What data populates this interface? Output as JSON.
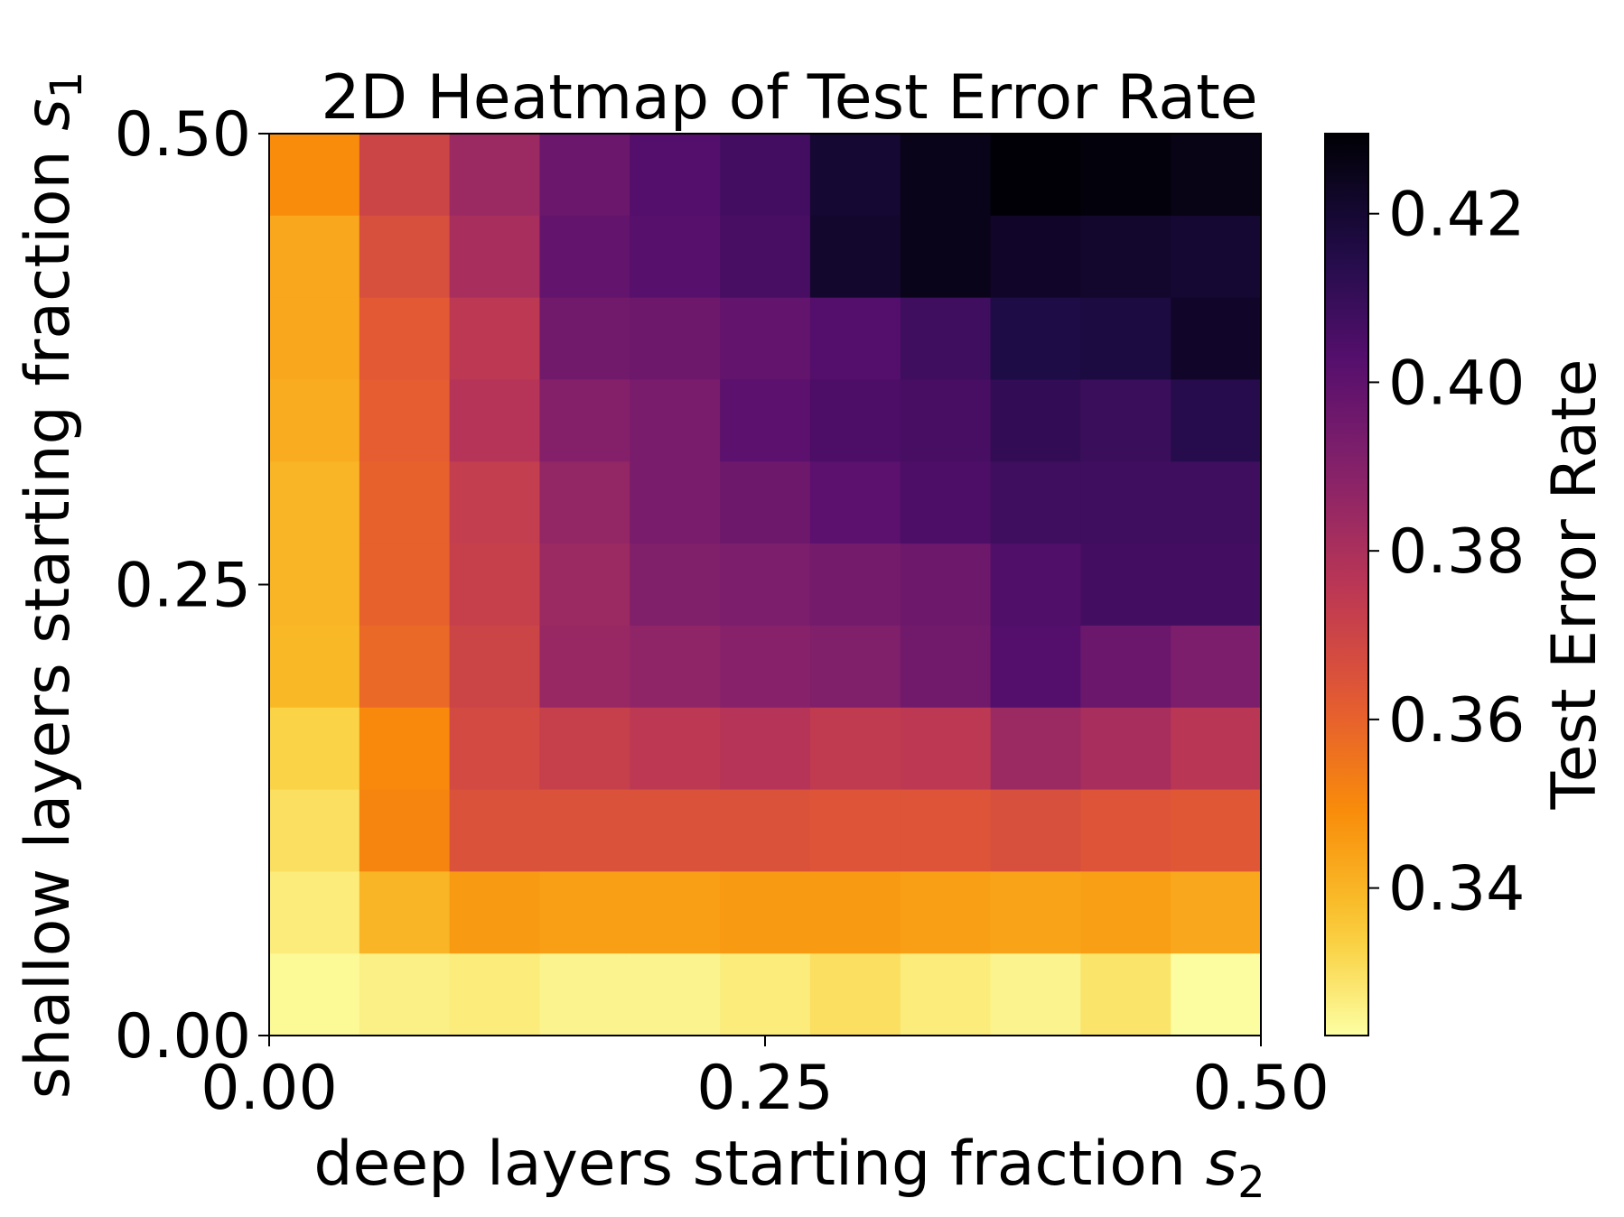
{
  "chart_data": {
    "type": "heatmap",
    "title": "2D Heatmap of Test Error Rate",
    "xlabel_text": "deep layers starting fraction ",
    "xlabel_var": "s",
    "xlabel_sub": "2",
    "ylabel_text": "shallow layers starting fraction ",
    "ylabel_var": "s",
    "ylabel_sub": "1",
    "colorbar_label": "Test Error Rate",
    "colormap": "inferno_r",
    "xlim": [
      0.0,
      0.5
    ],
    "ylim": [
      0.0,
      0.5
    ],
    "x_ticks": [
      0.0,
      0.25,
      0.5
    ],
    "x_tick_labels": [
      "0.00",
      "0.25",
      "0.50"
    ],
    "y_ticks": [
      0.0,
      0.25,
      0.5
    ],
    "y_tick_labels": [
      "0.00",
      "0.25",
      "0.50"
    ],
    "color_range": [
      0.3225,
      0.4295
    ],
    "colorbar_ticks": [
      0.34,
      0.36,
      0.38,
      0.4,
      0.42
    ],
    "colorbar_tick_labels": [
      "0.34",
      "0.36",
      "0.38",
      "0.40",
      "0.42"
    ],
    "rows_top_to_bottom": [
      [
        0.349,
        0.37,
        0.384,
        0.397,
        0.403,
        0.407,
        0.42,
        0.425,
        0.429,
        0.428,
        0.426
      ],
      [
        0.343,
        0.366,
        0.381,
        0.399,
        0.402,
        0.406,
        0.421,
        0.425,
        0.422,
        0.421,
        0.42
      ],
      [
        0.343,
        0.362,
        0.375,
        0.395,
        0.396,
        0.399,
        0.403,
        0.408,
        0.416,
        0.417,
        0.422
      ],
      [
        0.342,
        0.361,
        0.377,
        0.39,
        0.393,
        0.401,
        0.405,
        0.406,
        0.411,
        0.409,
        0.414
      ],
      [
        0.34,
        0.36,
        0.373,
        0.386,
        0.393,
        0.396,
        0.401,
        0.405,
        0.408,
        0.408,
        0.408
      ],
      [
        0.34,
        0.36,
        0.372,
        0.384,
        0.391,
        0.392,
        0.394,
        0.396,
        0.404,
        0.407,
        0.407
      ],
      [
        0.339,
        0.358,
        0.37,
        0.385,
        0.387,
        0.389,
        0.391,
        0.395,
        0.403,
        0.397,
        0.392
      ],
      [
        0.333,
        0.35,
        0.368,
        0.372,
        0.375,
        0.377,
        0.374,
        0.375,
        0.384,
        0.381,
        0.376
      ],
      [
        0.33,
        0.351,
        0.365,
        0.365,
        0.365,
        0.365,
        0.364,
        0.364,
        0.366,
        0.364,
        0.363
      ],
      [
        0.327,
        0.34,
        0.346,
        0.345,
        0.345,
        0.346,
        0.346,
        0.345,
        0.344,
        0.345,
        0.343
      ],
      [
        0.324,
        0.326,
        0.327,
        0.325,
        0.325,
        0.327,
        0.33,
        0.327,
        0.325,
        0.329,
        0.323
      ]
    ]
  }
}
